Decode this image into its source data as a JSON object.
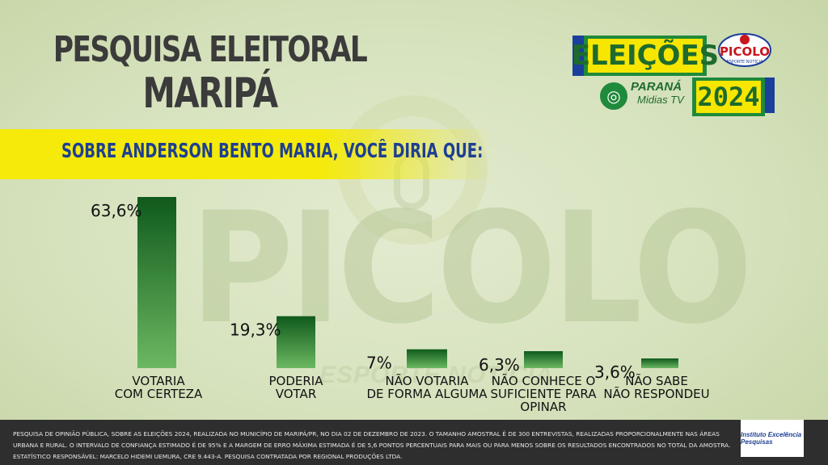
{
  "header": {
    "title_line1": "PESQUISA ELEITORAL",
    "title_line2": "MARIPÁ"
  },
  "badge": {
    "eleicoes": "ELEIÇÕES",
    "year": "2024",
    "picolo": "PICOLO",
    "picolo_sub": "ESPORTE NOTÍCIA",
    "parana": "PARANÁ",
    "parana_sub": "Midias TV"
  },
  "watermark": {
    "main": "PICOLO",
    "sub": "ESPORTE NOTÍCIA"
  },
  "question": "SOBRE ANDERSON BENTO MARIA, VOCÊ DIRIA QUE:",
  "colors": {
    "bar_dark": "#0f5a1c",
    "bar_light": "#6bb862",
    "yellow": "#f6e600",
    "blue": "#1d3f92",
    "green": "#1f8a3b"
  },
  "chart_data": {
    "type": "bar",
    "categories": [
      [
        "VOTARIA",
        "COM CERTEZA"
      ],
      [
        "PODERIA",
        "VOTAR"
      ],
      [
        "NÃO VOTARIA",
        "DE FORMA ALGUMA"
      ],
      [
        "NÃO CONHECE O",
        "SUFICIENTE PARA",
        "OPINAR"
      ],
      [
        "NÃO SABE",
        "NÃO RESPONDEU"
      ]
    ],
    "values": [
      63.6,
      19.3,
      7,
      6.3,
      3.6
    ],
    "value_labels": [
      "63,6%",
      "19,3%",
      "7%",
      "6,3%",
      "3,6%"
    ],
    "title": "SOBRE ANDERSON BENTO MARIA, VOCÊ DIRIA QUE:",
    "ylim": [
      0,
      70
    ]
  },
  "footer": {
    "text": "PESQUISA DE OPINIÃO PÚBLICA, SOBRE AS ELEIÇÕES 2024, REALIZADA NO MUNICÍPIO DE MARIPÁ/PR, NO DIA 02 DE DEZEMBRO DE 2023. O TAMANHO AMOSTRAL É DE 300 ENTREVISTAS, REALIZADAS PROPORCIONALMENTE NAS ÁREAS URBANA E RURAL. O INTERVALO DE CONFIANÇA ESTIMADO É DE 95% E A MARGEM DE ERRO MÁXIMA ESTIMADA É DE 5,6 PONTOS PERCENTUAIS PARA MAIS OU PARA MENOS SOBRE OS RESULTADOS ENCONTRADOS NO TOTAL DA AMOSTRA. ESTATÍSTICO RESPONSÁVEL: MARCELO HIDEMI UEMURA, CRE 9.443-A. PESQUISA CONTRATADA POR REGIONAL PRODUÇÕES LTDA.",
    "logo": "Instituto Excelência Pesquisas"
  }
}
